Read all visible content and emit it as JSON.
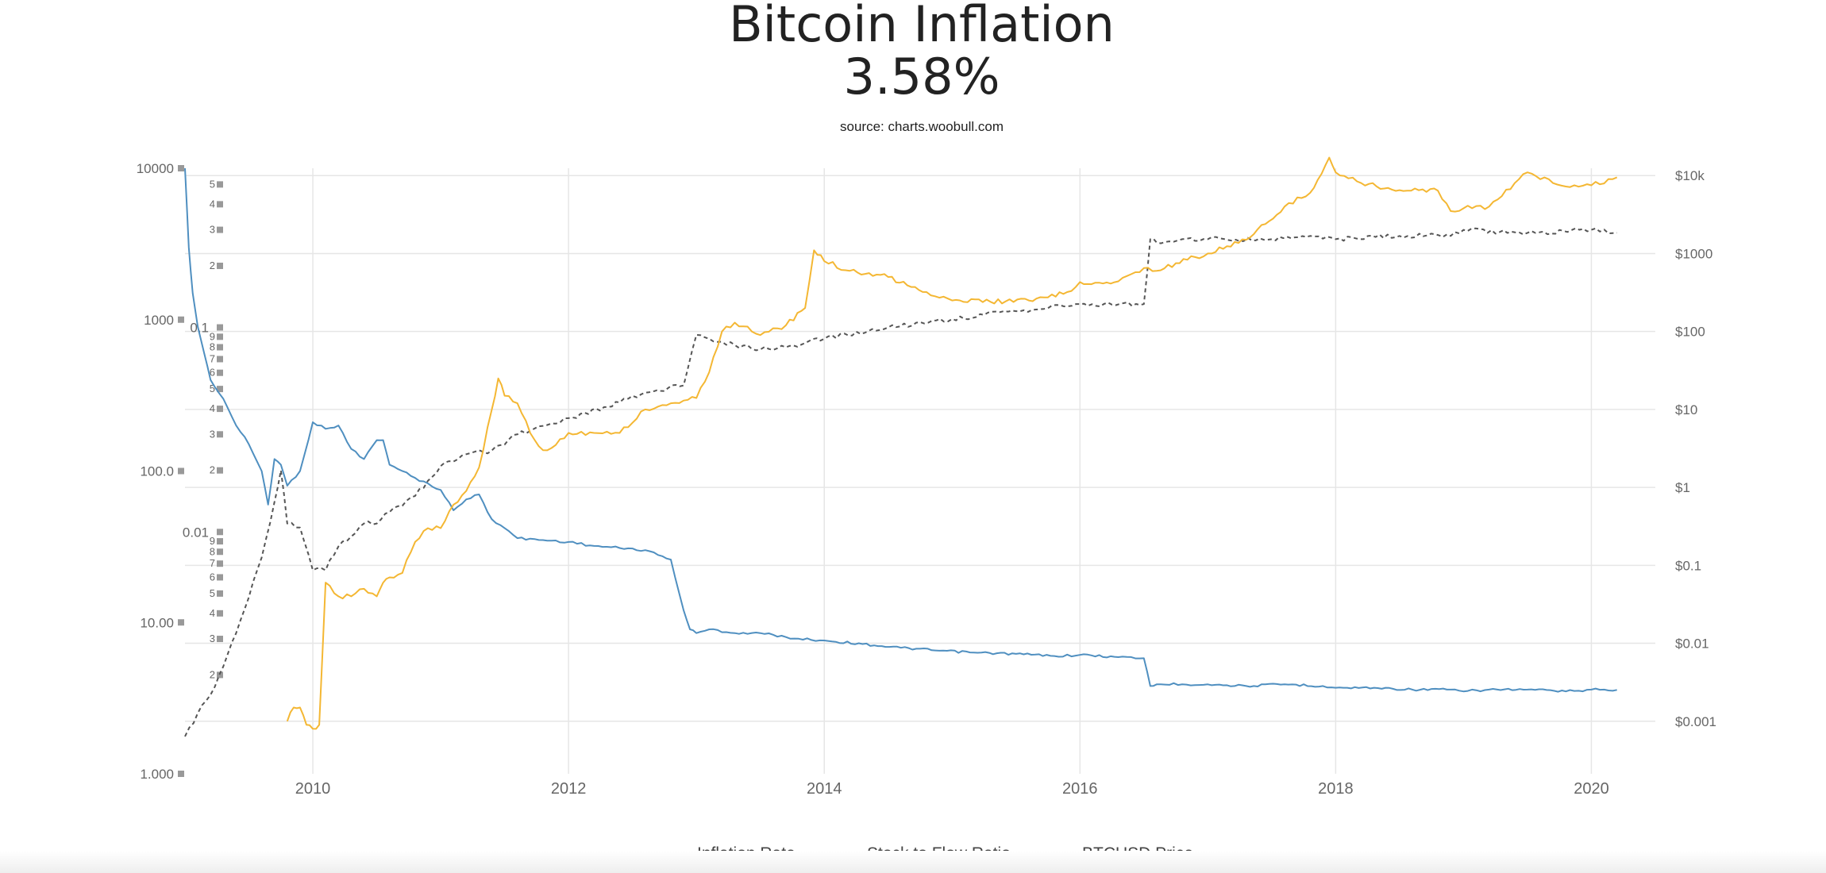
{
  "chart_data": {
    "type": "line",
    "title": "Bitcoin Inflation",
    "subtitle": "3.58%",
    "source": "source: charts.woobull.com",
    "x_axis": {
      "range": [
        2009.0,
        2020.5
      ],
      "ticks": [
        "2010",
        "2012",
        "2014",
        "2016",
        "2018",
        "2020"
      ],
      "grid": true
    },
    "y_axis_left": {
      "scale": "log",
      "range": [
        1,
        10000
      ],
      "ticks": [
        "10000",
        "1000",
        "100.0",
        "10.00",
        "1.000"
      ]
    },
    "y_axis_inner": {
      "scale": "log",
      "range": [
        0.001,
        0.6
      ],
      "decade_labels": [
        "0.1",
        "0.01"
      ],
      "minor_labels": [
        "5",
        "4",
        "3",
        "2",
        "9",
        "8",
        "7",
        "6"
      ]
    },
    "y_axis_right": {
      "scale": "log",
      "range": [
        0.0001,
        100000
      ],
      "ticks": [
        "$10k",
        "$1000",
        "$100",
        "$10",
        "$1",
        "$0.1",
        "$0.01",
        "$0.001"
      ],
      "grid": true
    },
    "legend_placement": "bottom-center",
    "series": [
      {
        "name": "Inflation Rate",
        "axis": "left",
        "color": "#4f8fc0",
        "style": "solid",
        "x": [
          2009.0,
          2009.03,
          2009.06,
          2009.1,
          2009.15,
          2009.2,
          2009.3,
          2009.4,
          2009.5,
          2009.6,
          2009.65,
          2009.7,
          2009.75,
          2009.8,
          2009.9,
          2010.0,
          2010.1,
          2010.2,
          2010.3,
          2010.4,
          2010.5,
          2010.55,
          2010.6,
          2010.7,
          2010.8,
          2011.0,
          2011.1,
          2011.2,
          2011.3,
          2011.4,
          2011.5,
          2011.6,
          2011.8,
          2012.0,
          2012.2,
          2012.4,
          2012.6,
          2012.8,
          2012.9,
          2012.95,
          2013.0,
          2013.1,
          2013.3,
          2013.5,
          2013.7,
          2013.8,
          2014.0,
          2014.3,
          2014.6,
          2014.9,
          2015.2,
          2015.5,
          2015.8,
          2016.0,
          2016.3,
          2016.5,
          2016.55,
          2016.6,
          2016.8,
          2017.0,
          2017.3,
          2017.6,
          2017.9,
          2018.0,
          2018.3,
          2018.6,
          2018.9,
          2019.0,
          2019.2,
          2019.5,
          2019.8,
          2020.0,
          2020.1,
          2020.2
        ],
        "y": [
          10000,
          3000,
          1500,
          900,
          600,
          400,
          300,
          200,
          150,
          100,
          60,
          120,
          110,
          80,
          100,
          210,
          190,
          200,
          140,
          120,
          160,
          160,
          110,
          100,
          90,
          75,
          55,
          65,
          70,
          48,
          42,
          36,
          35,
          34,
          32,
          31,
          30,
          26,
          12,
          9,
          8.5,
          9.0,
          8.5,
          8.5,
          8.0,
          7.8,
          7.6,
          7.2,
          6.8,
          6.5,
          6.3,
          6.2,
          6.0,
          6.1,
          5.9,
          5.8,
          3.8,
          3.9,
          3.9,
          3.9,
          3.8,
          3.9,
          3.8,
          3.7,
          3.7,
          3.6,
          3.6,
          3.5,
          3.6,
          3.6,
          3.5,
          3.6,
          3.6,
          3.58
        ]
      },
      {
        "name": "Stock to Flow Ratio",
        "axis": "inner",
        "color": "#555555",
        "style": "dashed",
        "x": [
          2009.0,
          2009.1,
          2009.2,
          2009.3,
          2009.4,
          2009.5,
          2009.6,
          2009.7,
          2009.75,
          2009.8,
          2009.9,
          2010.0,
          2010.1,
          2010.2,
          2010.3,
          2010.4,
          2010.5,
          2010.6,
          2010.8,
          2011.0,
          2011.2,
          2011.4,
          2011.6,
          2011.8,
          2012.0,
          2012.4,
          2012.6,
          2012.9,
          2013.0,
          2013.1,
          2013.3,
          2013.5,
          2013.7,
          2014.0,
          2014.5,
          2015.0,
          2015.5,
          2016.0,
          2016.5,
          2016.55,
          2016.6,
          2016.8,
          2017.0,
          2017.5,
          2017.8,
          2018.0,
          2018.5,
          2018.9,
          2019.0,
          2019.5,
          2020.0,
          2020.2
        ],
        "y": [
          0.001,
          0.0013,
          0.0016,
          0.0022,
          0.0032,
          0.0048,
          0.0075,
          0.014,
          0.02,
          0.011,
          0.0105,
          0.0065,
          0.0065,
          0.0085,
          0.0095,
          0.011,
          0.011,
          0.0125,
          0.015,
          0.021,
          0.024,
          0.025,
          0.03,
          0.033,
          0.036,
          0.043,
          0.048,
          0.052,
          0.092,
          0.088,
          0.082,
          0.078,
          0.08,
          0.088,
          0.1,
          0.11,
          0.12,
          0.13,
          0.13,
          0.27,
          0.26,
          0.27,
          0.27,
          0.27,
          0.28,
          0.27,
          0.28,
          0.28,
          0.3,
          0.29,
          0.3,
          0.29
        ]
      },
      {
        "name": "BTCUSD Price",
        "axis": "right",
        "color": "#f4b733",
        "style": "solid",
        "x": [
          2009.8,
          2009.85,
          2009.9,
          2009.95,
          2010.0,
          2010.05,
          2010.1,
          2010.2,
          2010.3,
          2010.4,
          2010.5,
          2010.55,
          2010.6,
          2010.7,
          2010.8,
          2010.9,
          2011.0,
          2011.1,
          2011.2,
          2011.3,
          2011.4,
          2011.45,
          2011.5,
          2011.6,
          2011.7,
          2011.8,
          2011.9,
          2012.0,
          2012.2,
          2012.4,
          2012.6,
          2012.8,
          2013.0,
          2013.1,
          2013.2,
          2013.3,
          2013.5,
          2013.7,
          2013.85,
          2013.92,
          2014.0,
          2014.2,
          2014.5,
          2014.8,
          2015.0,
          2015.3,
          2015.6,
          2015.9,
          2016.0,
          2016.3,
          2016.5,
          2016.6,
          2016.9,
          2017.0,
          2017.3,
          2017.6,
          2017.8,
          2017.95,
          2018.0,
          2018.2,
          2018.5,
          2018.8,
          2018.9,
          2019.0,
          2019.2,
          2019.4,
          2019.5,
          2019.7,
          2019.9,
          2020.0,
          2020.2
        ],
        "y": [
          0.001,
          0.0015,
          0.0015,
          0.0009,
          0.0008,
          0.0009,
          0.06,
          0.04,
          0.04,
          0.05,
          0.04,
          0.06,
          0.07,
          0.08,
          0.2,
          0.3,
          0.3,
          0.6,
          0.9,
          1.8,
          10,
          25,
          15,
          12,
          5,
          3,
          3.5,
          5,
          5,
          5,
          10,
          12,
          14,
          30,
          100,
          130,
          90,
          120,
          200,
          1100,
          800,
          600,
          500,
          320,
          250,
          240,
          250,
          320,
          430,
          440,
          650,
          600,
          900,
          1000,
          1500,
          4000,
          6000,
          17000,
          11000,
          8000,
          6500,
          6400,
          3500,
          3800,
          4000,
          8000,
          11000,
          8000,
          7200,
          7500,
          9500
        ]
      }
    ]
  }
}
